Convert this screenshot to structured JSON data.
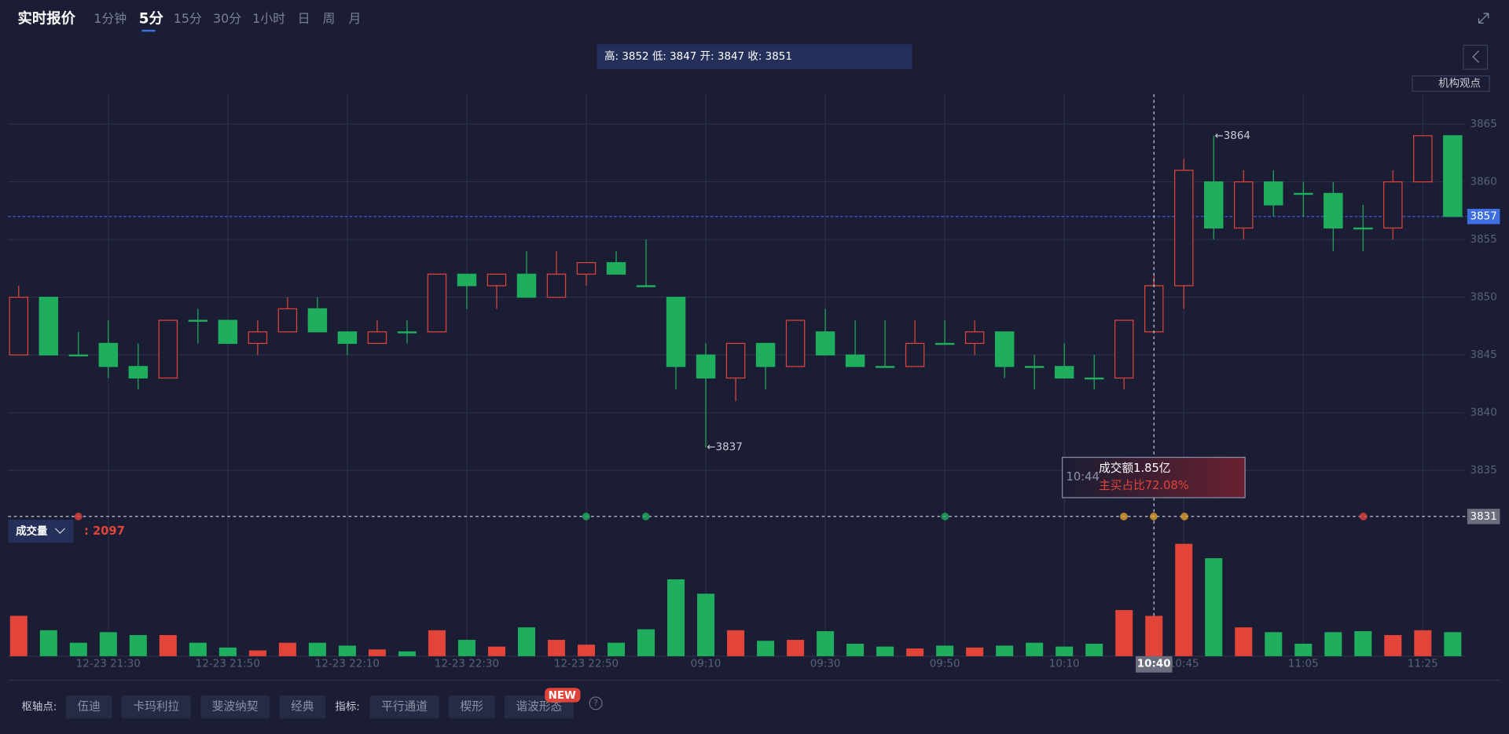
{
  "header": {
    "title": "实时报价",
    "tabs": [
      "1分钟",
      "5分",
      "15分",
      "30分",
      "1小时",
      "日",
      "周",
      "月"
    ],
    "active_tab": 1
  },
  "ohlc_readout": "高: 3852 低: 3847 开: 3847 收: 3851",
  "opinion_button": "机构观点",
  "chart_data": {
    "type": "candlestick",
    "categories": [
      null,
      null,
      null,
      "12-23 21:30",
      null,
      null,
      null,
      "12-23 21:50",
      null,
      null,
      null,
      "12-23 22:10",
      null,
      null,
      null,
      "12-23 22:30",
      null,
      null,
      null,
      "12-23 22:50",
      null,
      null,
      null,
      "09:10",
      null,
      null,
      null,
      "09:30",
      null,
      null,
      null,
      "09:50",
      null,
      null,
      null,
      "10:10",
      null,
      null,
      null,
      "10:45",
      null,
      null,
      null,
      "11:05",
      null,
      null,
      null,
      "11:25",
      null
    ],
    "open": [
      3845,
      3850,
      3845,
      3846,
      3844,
      3843,
      3848,
      3848,
      3846,
      3847,
      3849,
      3847,
      3846,
      3847,
      3847,
      3852,
      3851,
      3852,
      3850,
      3852,
      3853,
      3851,
      3850,
      3845,
      3843,
      3846,
      3844,
      3847,
      3845,
      3844,
      3844,
      3846,
      3846,
      3847,
      3844,
      3844,
      3843,
      3843,
      3847,
      3851,
      3860,
      3856,
      3860,
      3859,
      3859,
      3856,
      3856,
      3860,
      3864
    ],
    "high": [
      3851,
      3850,
      3847,
      3848,
      3846,
      3848,
      3849,
      3848,
      3848,
      3850,
      3850,
      3847,
      3848,
      3848,
      3852,
      3852,
      3852,
      3854,
      3854,
      3853,
      3854,
      3855,
      3850,
      3846,
      3846,
      3846,
      3848,
      3849,
      3848,
      3848,
      3848,
      3848,
      3848,
      3847,
      3845,
      3846,
      3845,
      3848,
      3852,
      3862,
      3864,
      3861,
      3861,
      3860,
      3860,
      3858,
      3861,
      3864,
      3864
    ],
    "low": [
      3845,
      3845,
      3845,
      3843,
      3842,
      3843,
      3846,
      3846,
      3845,
      3847,
      3847,
      3845,
      3846,
      3846,
      3847,
      3849,
      3849,
      3850,
      3850,
      3851,
      3852,
      3851,
      3842,
      3837,
      3841,
      3842,
      3844,
      3845,
      3844,
      3844,
      3844,
      3846,
      3845,
      3843,
      3842,
      3843,
      3842,
      3842,
      3847,
      3849,
      3855,
      3855,
      3857,
      3857,
      3854,
      3854,
      3855,
      3860,
      3857
    ],
    "close": [
      3850,
      3845,
      3845,
      3844,
      3843,
      3848,
      3848,
      3846,
      3847,
      3849,
      3847,
      3846,
      3847,
      3847,
      3852,
      3851,
      3852,
      3850,
      3852,
      3853,
      3852,
      3851,
      3844,
      3843,
      3846,
      3844,
      3848,
      3845,
      3844,
      3844,
      3846,
      3846,
      3847,
      3844,
      3844,
      3843,
      3843,
      3848,
      3851,
      3861,
      3856,
      3860,
      3858,
      3859,
      3856,
      3856,
      3860,
      3864,
      3857
    ],
    "up_color": "#e2443a",
    "down_color": "#1fae5e",
    "ylim": [
      3830.8,
      3867.6
    ],
    "yticks": [
      3835,
      3840,
      3845,
      3850,
      3855,
      3860,
      3865
    ],
    "grid": true,
    "last_price": 3857,
    "crosshair_price": 3831,
    "crosshair_index": 38,
    "crosshair_label": "10:40",
    "annotations": [
      {
        "text": "←3864",
        "index": 40,
        "value": 3864
      },
      {
        "text": "←3837",
        "index": 23,
        "value": 3837
      }
    ]
  },
  "trade_tooltip": {
    "time": "10:44",
    "turnover": "成交额1.85亿",
    "buy_ratio": "主买占比72.08%"
  },
  "volume": {
    "label": "成交量",
    "readout": ": 2097",
    "values": [
      2100,
      1350,
      700,
      1250,
      1100,
      1100,
      700,
      450,
      300,
      700,
      700,
      550,
      350,
      250,
      1350,
      850,
      500,
      1500,
      850,
      600,
      700,
      1400,
      4000,
      3250,
      1350,
      800,
      850,
      1300,
      650,
      500,
      400,
      550,
      450,
      550,
      700,
      500,
      650,
      2400,
      2097,
      5850,
      5100,
      1500,
      1250,
      650,
      1250,
      1300,
      1100,
      1350,
      1250
    ],
    "ylim": [
      0,
      5900
    ]
  },
  "toolbar": {
    "pivot_label": "枢轴点:",
    "pivots": [
      "伍迪",
      "卡玛利拉",
      "斐波纳契",
      "经典"
    ],
    "indicator_label": "指标:",
    "indicators": [
      "平行通道",
      "楔形",
      "谐波形态"
    ],
    "new_badge": "NEW",
    "help": "?"
  }
}
